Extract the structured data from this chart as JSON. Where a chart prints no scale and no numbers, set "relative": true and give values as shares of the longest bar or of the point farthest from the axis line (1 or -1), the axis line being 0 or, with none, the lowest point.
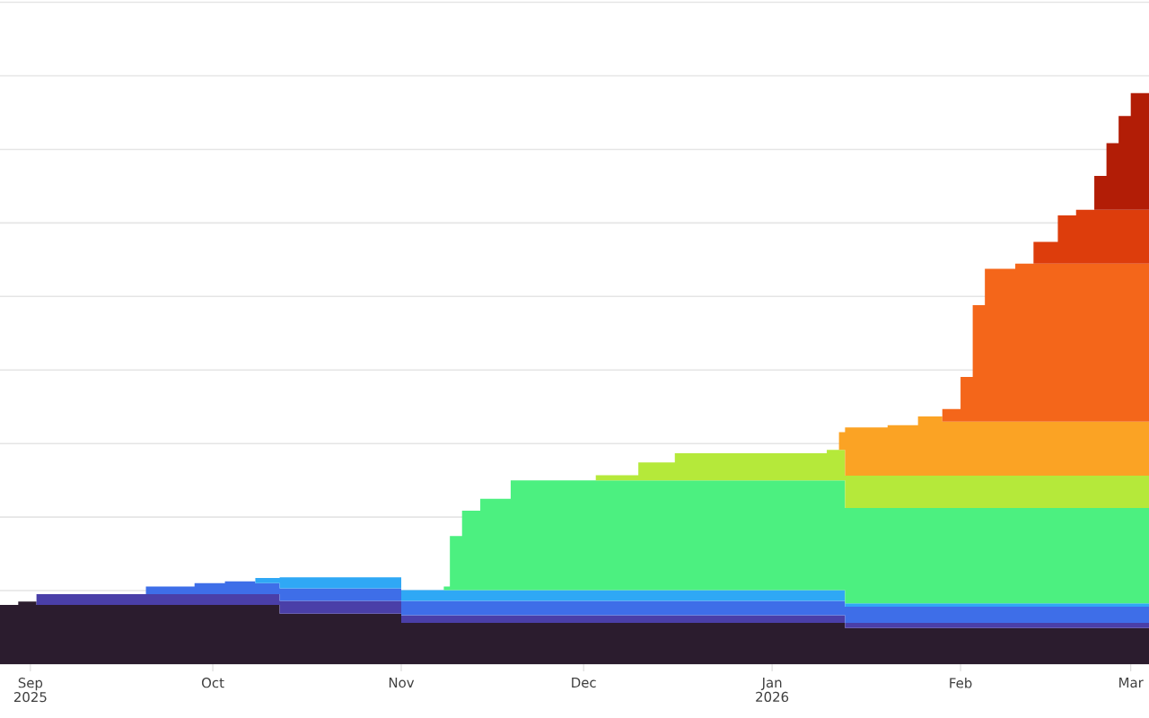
{
  "chart_data": {
    "type": "area",
    "stacked": true,
    "relative": true,
    "grid": "y",
    "x": [
      "2025-08-27",
      "2025-08-30",
      "2025-09-02",
      "2025-09-20",
      "2025-09-28",
      "2025-10-03",
      "2025-10-08",
      "2025-10-12",
      "2025-11-01",
      "2025-11-08",
      "2025-11-09",
      "2025-11-11",
      "2025-11-14",
      "2025-11-19",
      "2025-12-03",
      "2025-12-10",
      "2025-12-16",
      "2026-01-10",
      "2026-01-12",
      "2026-01-13",
      "2026-01-20",
      "2026-01-25",
      "2026-01-29",
      "2026-02-01",
      "2026-02-03",
      "2026-02-05",
      "2026-02-10",
      "2026-02-13",
      "2026-02-17",
      "2026-02-20",
      "2026-02-23",
      "2026-02-25",
      "2026-02-27",
      "2026-03-01",
      "2026-03-04"
    ],
    "xlim": [
      "2025-08-27",
      "2026-03-04"
    ],
    "xticks": [
      {
        "value": "2025-09-01",
        "label": "Sep 2025"
      },
      {
        "value": "2025-10-01",
        "label": "Oct"
      },
      {
        "value": "2025-11-01",
        "label": "Nov"
      },
      {
        "value": "2025-12-01",
        "label": "Dec"
      },
      {
        "value": "2026-01-01",
        "label": "Jan 2026"
      },
      {
        "value": "2026-02-01",
        "label": "Feb"
      },
      {
        "value": "2026-03-01",
        "label": "Mar"
      }
    ],
    "series": [
      {
        "color": "#2b1c2e",
        "values": [
          0.103,
          0.109,
          0.103,
          0.103,
          0.103,
          0.103,
          0.103,
          0.088,
          0.072,
          0.072,
          0.072,
          0.072,
          0.072,
          0.072,
          0.072,
          0.072,
          0.072,
          0.072,
          0.072,
          0.063,
          0.063,
          0.063,
          0.063,
          0.063,
          0.063,
          0.063,
          0.063,
          0.063,
          0.063,
          0.063,
          0.063,
          0.063,
          0.063,
          0.063,
          0.063
        ]
      },
      {
        "color": "#4a3fa8",
        "values": [
          null,
          null,
          0.019,
          0.019,
          0.019,
          0.019,
          0.019,
          0.022,
          0.013,
          0.013,
          0.013,
          0.013,
          0.013,
          0.013,
          0.013,
          0.013,
          0.013,
          0.013,
          0.013,
          0.009,
          0.009,
          0.009,
          0.009,
          0.009,
          0.009,
          0.009,
          0.009,
          0.009,
          0.009,
          0.009,
          0.009,
          0.009,
          0.009,
          0.009,
          0.009
        ]
      },
      {
        "color": "#3e6ee8",
        "values": [
          null,
          null,
          null,
          0.013,
          0.019,
          0.022,
          0.019,
          0.022,
          0.025,
          0.025,
          0.025,
          0.025,
          0.025,
          0.025,
          0.025,
          0.025,
          0.025,
          0.025,
          0.025,
          0.028,
          0.028,
          0.028,
          0.028,
          0.028,
          0.028,
          0.028,
          0.028,
          0.028,
          0.028,
          0.028,
          0.028,
          0.028,
          0.028,
          0.028,
          0.028
        ]
      },
      {
        "color": "#2fa8f5",
        "values": [
          null,
          null,
          null,
          null,
          null,
          null,
          0.009,
          0.019,
          0.019,
          0.019,
          0.019,
          0.019,
          0.019,
          0.019,
          0.019,
          0.019,
          0.019,
          0.019,
          0.019,
          0.006,
          0.006,
          0.006,
          0.006,
          0.006,
          0.006,
          0.006,
          0.006,
          0.006,
          0.006,
          0.006,
          0.006,
          0.006,
          0.006,
          0.006,
          0.006
        ]
      },
      {
        "color": "#4cf080",
        "values": [
          null,
          null,
          null,
          null,
          null,
          null,
          null,
          null,
          null,
          0.006,
          0.094,
          0.138,
          0.159,
          0.191,
          0.191,
          0.191,
          0.191,
          0.191,
          0.191,
          0.166,
          0.166,
          0.166,
          0.166,
          0.166,
          0.166,
          0.166,
          0.166,
          0.166,
          0.166,
          0.166,
          0.166,
          0.166,
          0.166,
          0.166,
          0.166
        ]
      },
      {
        "color": "#b5e93a",
        "values": [
          null,
          null,
          null,
          null,
          null,
          null,
          null,
          null,
          null,
          null,
          null,
          null,
          null,
          null,
          0.009,
          0.031,
          0.047,
          0.053,
          0.053,
          0.056,
          0.056,
          0.056,
          0.056,
          0.056,
          0.056,
          0.056,
          0.056,
          0.056,
          0.056,
          0.056,
          0.056,
          0.056,
          0.056,
          0.056,
          0.056
        ]
      },
      {
        "color": "#fba324",
        "values": [
          null,
          null,
          null,
          null,
          null,
          null,
          null,
          null,
          null,
          null,
          null,
          null,
          null,
          null,
          null,
          null,
          null,
          null,
          0.031,
          0.084,
          0.088,
          0.103,
          0.094,
          0.094,
          0.094,
          0.094,
          0.094,
          0.094,
          0.094,
          0.094,
          0.094,
          0.094,
          0.094,
          0.094,
          0.094
        ]
      },
      {
        "color": "#f4661a",
        "values": [
          null,
          null,
          null,
          null,
          null,
          null,
          null,
          null,
          null,
          null,
          null,
          null,
          null,
          null,
          null,
          null,
          null,
          null,
          null,
          null,
          null,
          null,
          0.022,
          0.078,
          0.203,
          0.266,
          0.275,
          0.275,
          0.275,
          0.275,
          0.275,
          0.275,
          0.275,
          0.275,
          0.275
        ]
      },
      {
        "color": "#dd3d0c",
        "values": [
          null,
          null,
          null,
          null,
          null,
          null,
          null,
          null,
          null,
          null,
          null,
          null,
          null,
          null,
          null,
          null,
          null,
          null,
          null,
          null,
          null,
          null,
          null,
          null,
          null,
          null,
          null,
          0.038,
          0.084,
          0.094,
          0.094,
          0.094,
          0.094,
          0.094,
          0.094
        ]
      },
      {
        "color": "#b21d06",
        "values": [
          null,
          null,
          null,
          null,
          null,
          null,
          null,
          null,
          null,
          null,
          null,
          null,
          null,
          null,
          null,
          null,
          null,
          null,
          null,
          null,
          null,
          null,
          null,
          null,
          null,
          null,
          null,
          null,
          null,
          null,
          0.059,
          0.116,
          0.163,
          0.203,
          0.209
        ]
      }
    ]
  }
}
